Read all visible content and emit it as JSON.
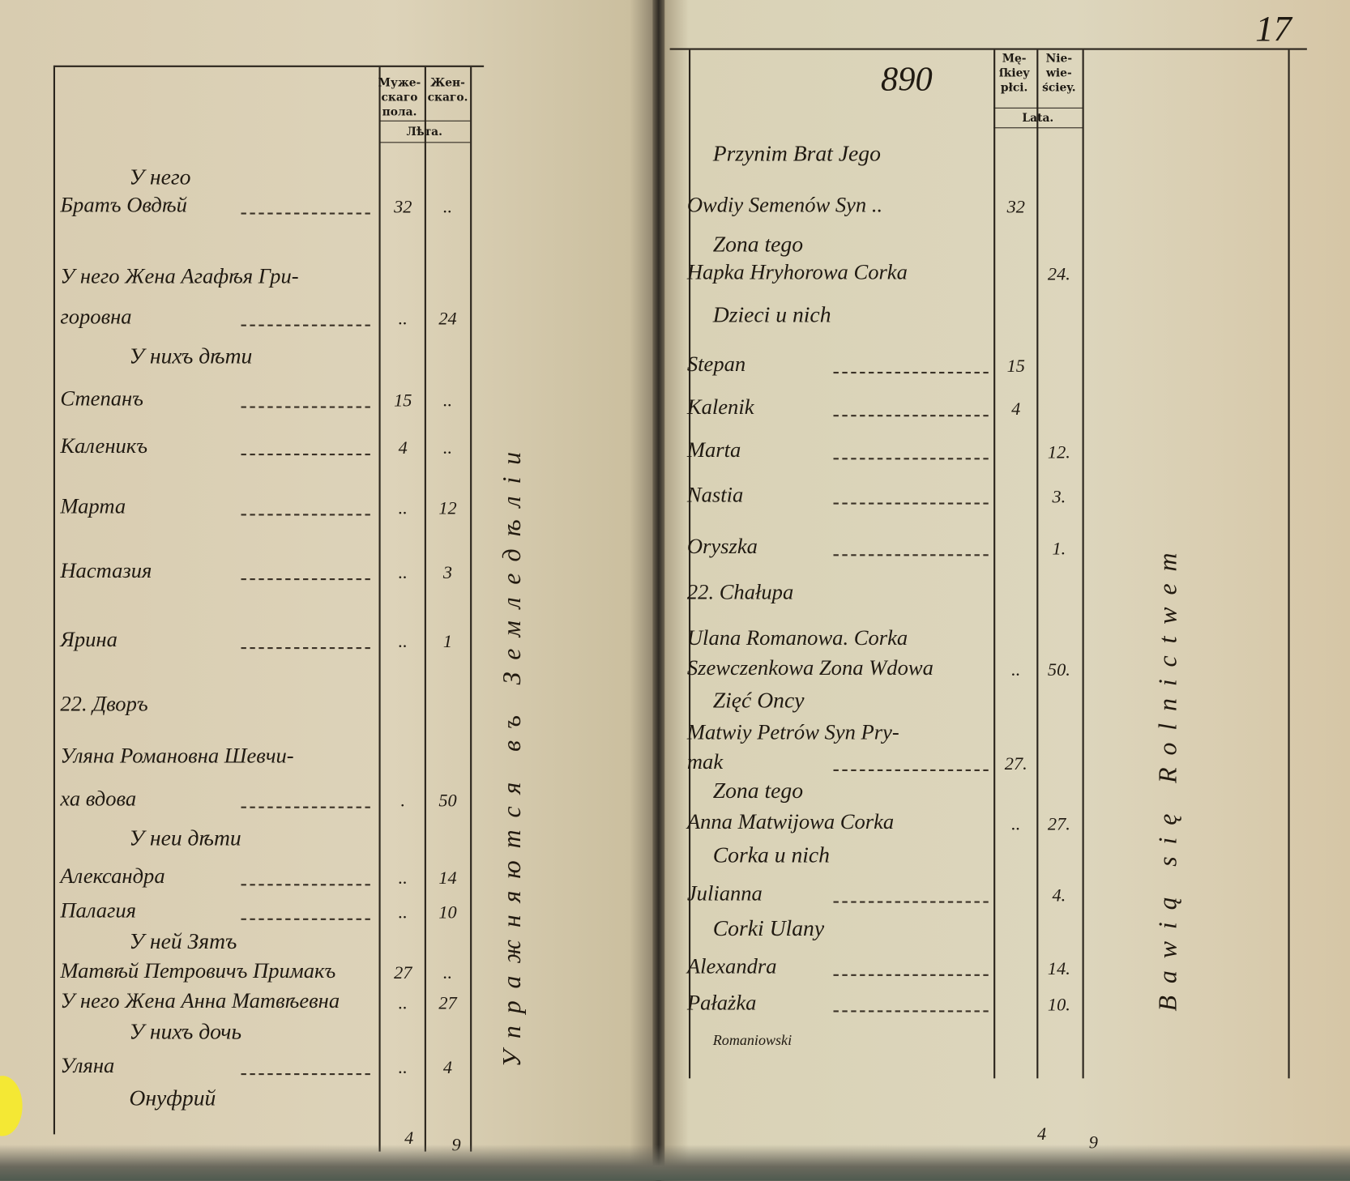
{
  "left_page": {
    "header": {
      "male_col": "Муже-\nскаго\nпола.",
      "female_col": "Жен-\nскаго.",
      "years": "Лѣта."
    },
    "rows": [
      {
        "text": "У него",
        "heading": true
      },
      {
        "text": "Братъ Овдѣй",
        "male": "32",
        "female": "..",
        "dashes": true
      },
      {
        "text": "У него Жена Агафѣя Гри-"
      },
      {
        "text": "горовна",
        "male": "..",
        "female": "24",
        "dashes": true
      },
      {
        "text": "У нихъ дѣти",
        "heading": true
      },
      {
        "text": "Степанъ",
        "male": "15",
        "female": "..",
        "dashes": true
      },
      {
        "text": "Каленикъ",
        "male": "4",
        "female": "..",
        "dashes": true
      },
      {
        "text": "Марта",
        "male": "..",
        "female": "12",
        "dashes": true
      },
      {
        "text": "Настазия",
        "male": "..",
        "female": "3",
        "dashes": true
      },
      {
        "text": "Ярина",
        "male": "..",
        "female": "1",
        "dashes": true
      },
      {
        "text": "22. Дворъ"
      },
      {
        "text": "Уляна Романовна Шевчи-"
      },
      {
        "text": "ха вдова",
        "male": ".",
        "female": "50",
        "dashes": true
      },
      {
        "text": "У неи дѣти",
        "heading": true
      },
      {
        "text": "Александра",
        "male": "..",
        "female": "14",
        "dashes": true
      },
      {
        "text": "Палагия",
        "male": "..",
        "female": "10",
        "dashes": true
      },
      {
        "text": "У ней Зятъ",
        "heading": true
      },
      {
        "text": "Матвѣй Петровичъ Примакъ",
        "male": "27",
        "female": ".."
      },
      {
        "text": "У него Жена Анна Матвѣевна",
        "male": "..",
        "female": "27"
      },
      {
        "text": "У нихъ дочь",
        "heading": true
      },
      {
        "text": "Уляна",
        "male": "..",
        "female": "4",
        "dashes": true
      },
      {
        "text": "Онуфрий",
        "heading": true
      }
    ],
    "side_note": "Упражняются въ Земледѣліи",
    "footer": {
      "male_total": "4",
      "female_total": "9"
    }
  },
  "right_page": {
    "page_number": "890",
    "folio_number": "17",
    "header": {
      "male_col": "Mę-\nſkiey\npłci.",
      "female_col": "Nie-\nwie-\nściey.",
      "years": "Lata."
    },
    "rows": [
      {
        "text": "Przynim Brat Jego",
        "heading": true
      },
      {
        "text": "Owdiy Semenów Syn ..",
        "male": "32",
        "female": ""
      },
      {
        "text": "Zona tego",
        "heading": true
      },
      {
        "text": "Hapka Hryhorowa Corka",
        "male": "",
        "female": "24."
      },
      {
        "text": "Dzieci u nich",
        "heading": true
      },
      {
        "text": "Stepan",
        "male": "15",
        "female": "",
        "dashes": true
      },
      {
        "text": "Kalenik",
        "male": "4",
        "female": "",
        "dashes": true
      },
      {
        "text": "Marta",
        "male": "",
        "female": "12.",
        "dashes": true
      },
      {
        "text": "Nastia",
        "male": "",
        "female": "3.",
        "dashes": true
      },
      {
        "text": "Oryszka",
        "male": "",
        "female": "1.",
        "dashes": true
      },
      {
        "text": "22. Chałupa"
      },
      {
        "text": "Ulana Romanowa. Corka"
      },
      {
        "text": "Szewczenkowa Zona Wdowa",
        "male": "..",
        "female": "50."
      },
      {
        "text": "Zięć Oncy",
        "heading": true
      },
      {
        "text": "Matwiy Petrów Syn Pry-"
      },
      {
        "text": "mak",
        "male": "27.",
        "female": "",
        "dashes": true
      },
      {
        "text": "Zona tego",
        "heading": true
      },
      {
        "text": "Anna Matwijowa Corka",
        "male": "..",
        "female": "27."
      },
      {
        "text": "Corka u nich",
        "heading": true
      },
      {
        "text": "Julianna",
        "male": "",
        "female": "4.",
        "dashes": true
      },
      {
        "text": "Corki Ulany",
        "heading": true
      },
      {
        "text": "Alexandra",
        "male": "",
        "female": "14.",
        "dashes": true
      },
      {
        "text": "Pałażka",
        "male": "",
        "female": "10.",
        "dashes": true
      },
      {
        "text": "Romaniowski",
        "heading": true,
        "small": true
      }
    ],
    "side_note": "Bawią się Rolnictwem",
    "footer": {
      "male_total": "4",
      "female_total": "9"
    }
  },
  "colors": {
    "paper": "#ddd6bd",
    "ink": "#201a12",
    "tab": "#f4e834"
  }
}
